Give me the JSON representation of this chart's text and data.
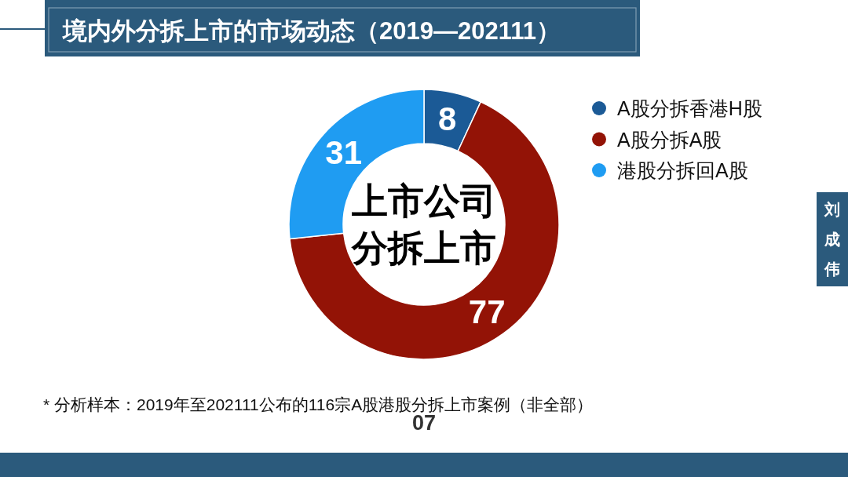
{
  "chart_data": {
    "type": "donut",
    "title": "境内外分拆上市的市场动态（2019—202111）",
    "categories": [
      "A股分拆香港H股",
      "A股分拆A股",
      "港股分拆回A股"
    ],
    "values": [
      8,
      77,
      31
    ],
    "colors": [
      "#1b5a96",
      "#931306",
      "#1f9cf2"
    ],
    "data_labels": true,
    "legend": "right",
    "annotations": [
      "上市公司",
      "分拆上市",
      "* 分析样本：2019年至202111公布的116宗A股港股分拆上市案例（非全部）",
      "07",
      "刘成伟"
    ]
  }
}
